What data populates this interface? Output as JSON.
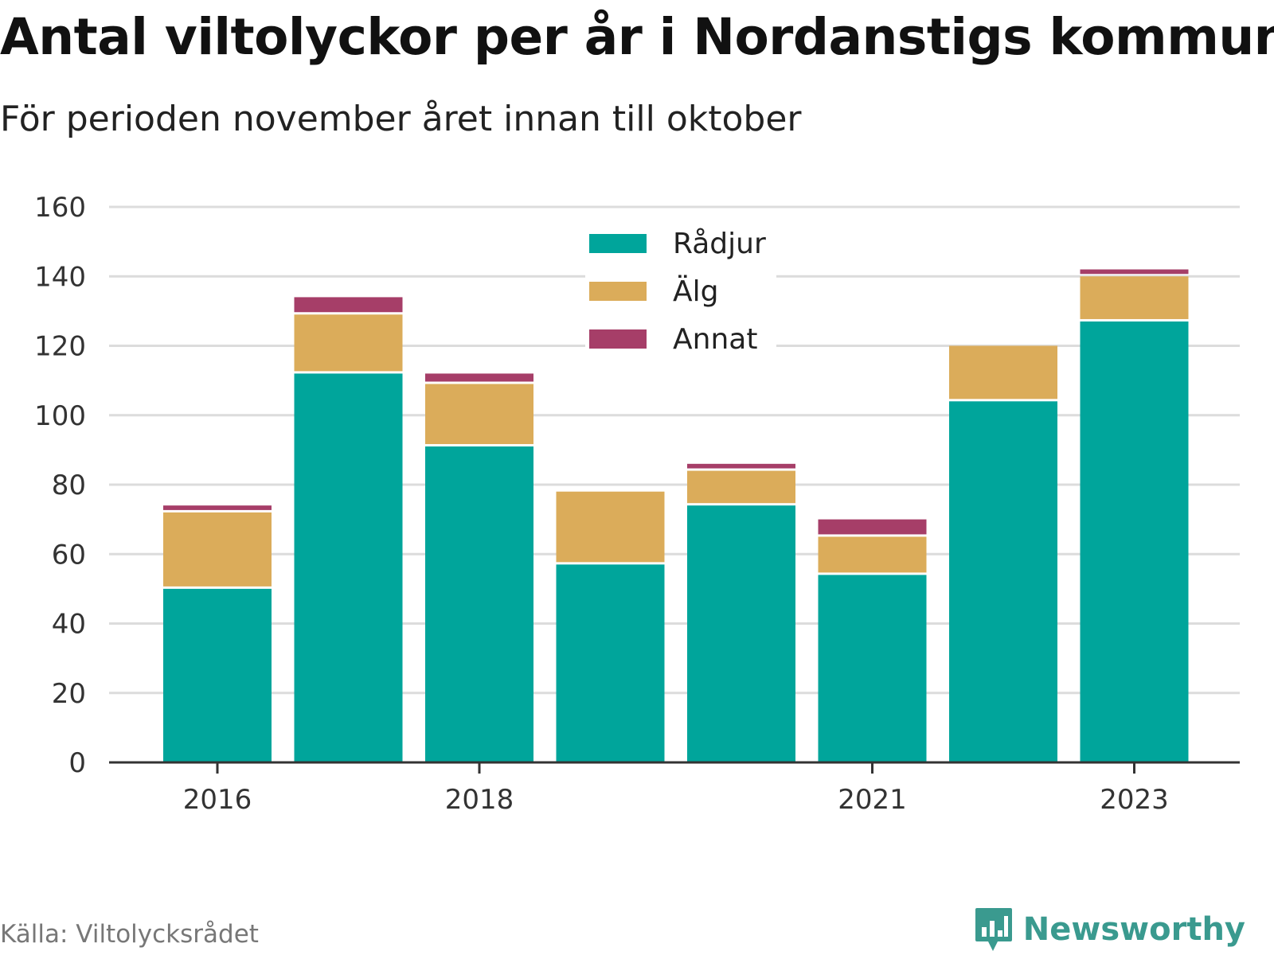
{
  "title": "Antal viltolyckor per år i Nordanstigs kommun",
  "subtitle": "För perioden november året innan till oktober",
  "source": "Källa: Viltolycksrådet",
  "brand": {
    "name": "Newsworthy",
    "icon": "newsworthy-logo-icon",
    "color": "#3a9a8f"
  },
  "chart_data": {
    "type": "bar",
    "stacked": true,
    "categories": [
      "2016",
      "2017",
      "2018",
      "2019",
      "2020",
      "2021",
      "2022",
      "2023"
    ],
    "tick_labels": [
      "2016",
      "",
      "2018",
      "",
      "",
      "2021",
      "",
      "2023"
    ],
    "series": [
      {
        "name": "Rådjur",
        "color": "#00a59b",
        "values": [
          50,
          112,
          91,
          57,
          74,
          54,
          104,
          127
        ]
      },
      {
        "name": "Älg",
        "color": "#dbac5a",
        "values": [
          22,
          17,
          18,
          21,
          10,
          11,
          16,
          13
        ]
      },
      {
        "name": "Annat",
        "color": "#a63e68",
        "values": [
          2,
          5,
          3,
          0,
          2,
          5,
          0,
          2
        ]
      }
    ],
    "ylim": [
      0,
      160
    ],
    "yticks": [
      0,
      20,
      40,
      60,
      80,
      100,
      120,
      140,
      160
    ],
    "xlabel": "",
    "ylabel": "",
    "grid": true,
    "legend_position": "top-center"
  }
}
